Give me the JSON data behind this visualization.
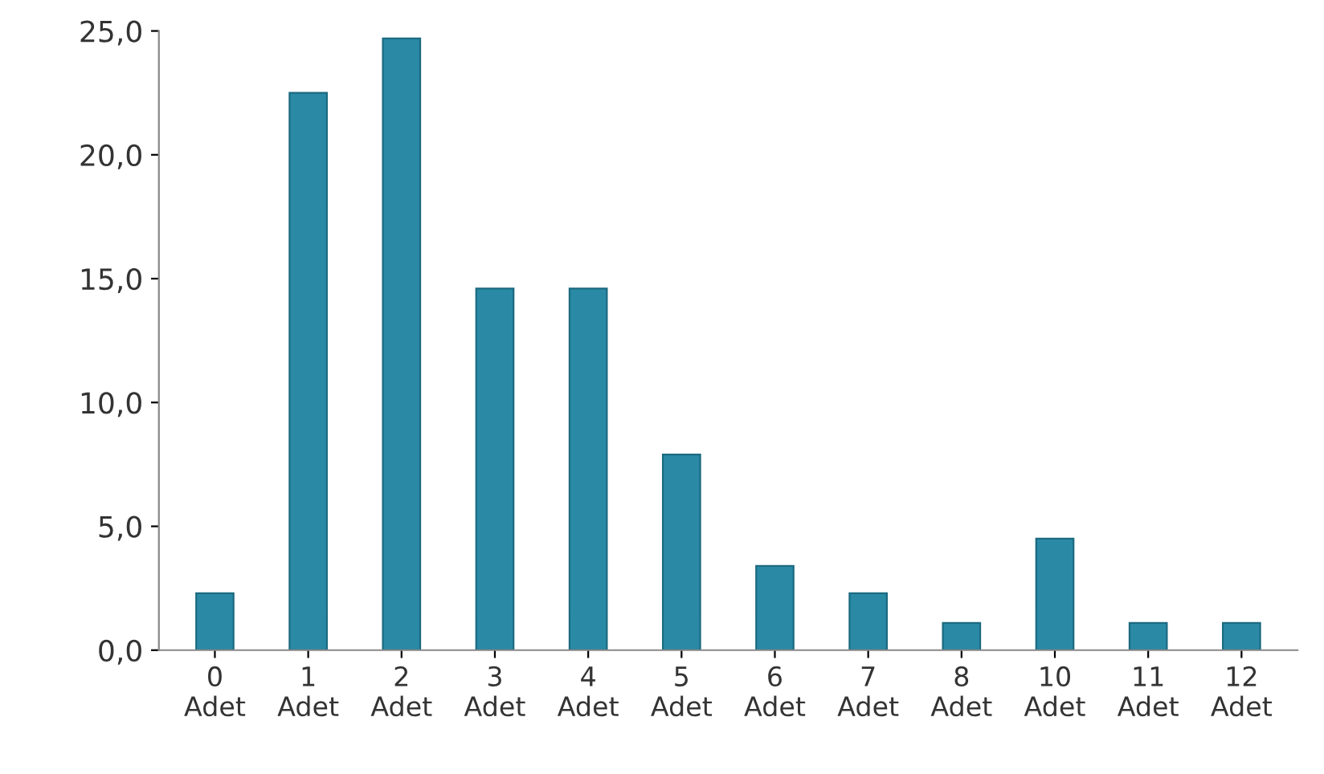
{
  "chart_data": {
    "type": "bar",
    "categories": [
      "0\nAdet",
      "1\nAdet",
      "2\nAdet",
      "3\nAdet",
      "4\nAdet",
      "5\nAdet",
      "6\nAdet",
      "7\nAdet",
      "8\nAdet",
      "10\nAdet",
      "11\nAdet",
      "12\nAdet"
    ],
    "values": [
      2.3,
      22.5,
      24.7,
      14.6,
      14.6,
      7.9,
      3.4,
      2.3,
      1.1,
      4.5,
      1.1,
      1.1
    ],
    "color": "#2a8aa5",
    "ylim": [
      0,
      25
    ],
    "yticks": [
      {
        "value": 0,
        "label": "0,0"
      },
      {
        "value": 5,
        "label": "5,0"
      },
      {
        "value": 10,
        "label": "10,0"
      },
      {
        "value": 15,
        "label": "15,0"
      },
      {
        "value": 20,
        "label": "20,0"
      },
      {
        "value": 25,
        "label": "25,0"
      }
    ],
    "grid": false
  }
}
